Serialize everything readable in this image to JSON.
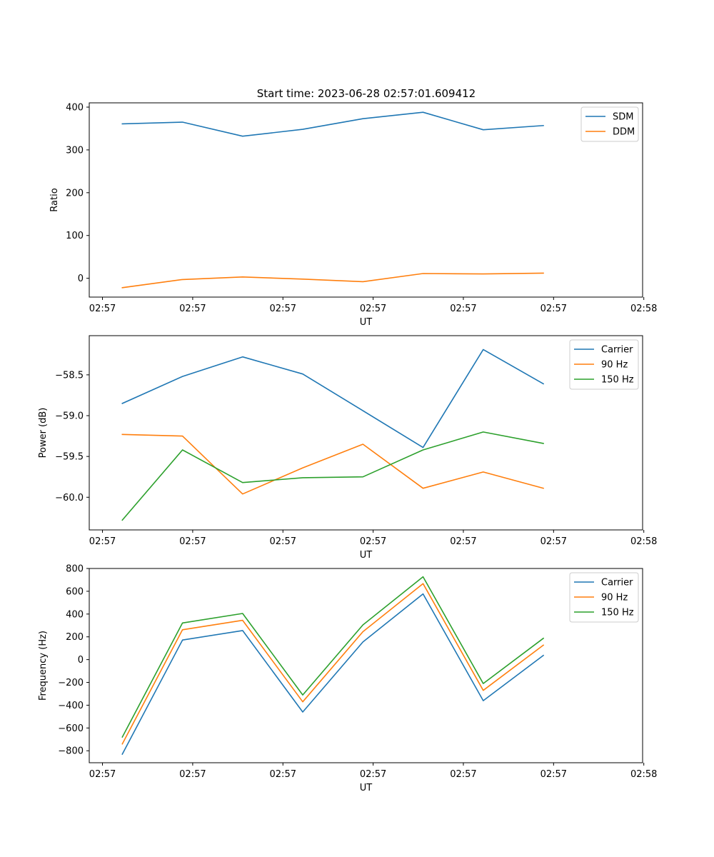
{
  "figure": {
    "title": "Start time: 2023-06-28 02:57:01.609412"
  },
  "colors": {
    "blue": "#1f77b4",
    "orange": "#ff7f0e",
    "green": "#2ca02c"
  },
  "chart_data": [
    {
      "type": "line",
      "title": "Start time: 2023-06-28 02:57:01.609412",
      "xlabel": "UT",
      "ylabel": "Ratio",
      "x": [
        1,
        2,
        3,
        4,
        5,
        6,
        7,
        8
      ],
      "xlim": [
        0.45,
        9.65
      ],
      "xticks": [
        0.67,
        2.17,
        3.67,
        5.17,
        6.67,
        8.17,
        9.67
      ],
      "xtick_labels": [
        "02:57",
        "02:57",
        "02:57",
        "02:57",
        "02:57",
        "02:57",
        "02:58"
      ],
      "ylim": [
        -44,
        410
      ],
      "yticks": [
        0,
        100,
        200,
        300,
        400
      ],
      "ytick_labels": [
        "0",
        "100",
        "200",
        "300",
        "400"
      ],
      "legend_position": "top-right",
      "grid": false,
      "series": [
        {
          "name": "SDM",
          "color": "#1f77b4",
          "values": [
            361,
            365,
            332,
            348,
            373,
            388,
            347,
            357
          ]
        },
        {
          "name": "DDM",
          "color": "#ff7f0e",
          "values": [
            -22,
            -3,
            3,
            -2,
            -8,
            11,
            10,
            12
          ]
        }
      ]
    },
    {
      "type": "line",
      "xlabel": "UT",
      "ylabel": "Power (dB)",
      "x": [
        1,
        2,
        3,
        4,
        5,
        6,
        7,
        8
      ],
      "xlim": [
        0.45,
        9.65
      ],
      "xticks": [
        0.67,
        2.17,
        3.67,
        5.17,
        6.67,
        8.17,
        9.67
      ],
      "xtick_labels": [
        "02:57",
        "02:57",
        "02:57",
        "02:57",
        "02:57",
        "02:57",
        "02:58"
      ],
      "ylim": [
        -60.4,
        -58.02
      ],
      "yticks": [
        -60.0,
        -59.5,
        -59.0,
        -58.5
      ],
      "ytick_labels": [
        "−60.0",
        "−59.5",
        "−59.0",
        "−58.5"
      ],
      "legend_position": "top-right",
      "grid": false,
      "series": [
        {
          "name": "Carrier",
          "color": "#1f77b4",
          "values": [
            -58.85,
            -58.52,
            -58.28,
            -58.49,
            -58.94,
            -59.39,
            -58.19,
            -58.61
          ]
        },
        {
          "name": "90 Hz",
          "color": "#ff7f0e",
          "values": [
            -59.23,
            -59.25,
            -59.96,
            -59.64,
            -59.35,
            -59.89,
            -59.69,
            -59.89
          ]
        },
        {
          "name": "150 Hz",
          "color": "#2ca02c",
          "values": [
            -60.28,
            -59.42,
            -59.82,
            -59.76,
            -59.75,
            -59.42,
            -59.2,
            -59.34
          ]
        }
      ]
    },
    {
      "type": "line",
      "xlabel": "UT",
      "ylabel": "Frequency (Hz)",
      "x": [
        1,
        2,
        3,
        4,
        5,
        6,
        7,
        8
      ],
      "xlim": [
        0.45,
        9.65
      ],
      "xticks": [
        0.67,
        2.17,
        3.67,
        5.17,
        6.67,
        8.17,
        9.67
      ],
      "xtick_labels": [
        "02:57",
        "02:57",
        "02:57",
        "02:57",
        "02:57",
        "02:57",
        "02:58"
      ],
      "ylim": [
        -905,
        800
      ],
      "yticks": [
        -800,
        -600,
        -400,
        -200,
        0,
        200,
        400,
        600,
        800
      ],
      "ytick_labels": [
        "−800",
        "−600",
        "−400",
        "−200",
        "0",
        "200",
        "400",
        "600",
        "800"
      ],
      "legend_position": "top-right",
      "grid": false,
      "series": [
        {
          "name": "Carrier",
          "color": "#1f77b4",
          "values": [
            -830,
            172,
            255,
            -460,
            155,
            577,
            -360,
            37
          ]
        },
        {
          "name": "90 Hz",
          "color": "#ff7f0e",
          "values": [
            -740,
            262,
            345,
            -370,
            245,
            667,
            -270,
            127
          ]
        },
        {
          "name": "150 Hz",
          "color": "#2ca02c",
          "values": [
            -680,
            322,
            405,
            -310,
            305,
            727,
            -210,
            187
          ]
        }
      ]
    }
  ]
}
